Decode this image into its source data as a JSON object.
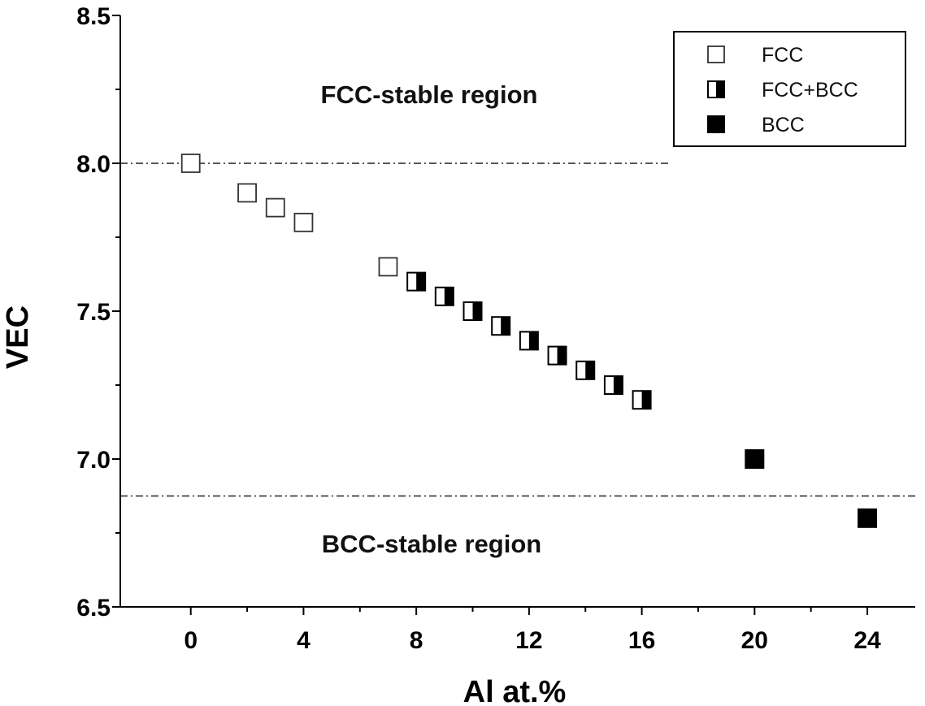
{
  "chart_data": {
    "type": "scatter",
    "xlabel": "Al at.%",
    "ylabel": "VEC",
    "xlim": [
      -2.5,
      25.7
    ],
    "ylim": [
      6.5,
      8.5
    ],
    "x_ticks": [
      "0",
      "4",
      "8",
      "12",
      "16",
      "20",
      "24"
    ],
    "y_ticks": [
      "6.5",
      "7.0",
      "7.5",
      "8.0",
      "8.5"
    ],
    "grid": false,
    "legend_position": "top-right",
    "series": [
      {
        "name": "FCC",
        "marker": "open-square",
        "x": [
          0,
          2,
          3,
          4,
          7
        ],
        "y": [
          8.0,
          7.9,
          7.85,
          7.8,
          7.65
        ]
      },
      {
        "name": "FCC+BCC",
        "marker": "half-filled-square",
        "x": [
          8,
          9,
          10,
          11,
          12,
          13,
          14,
          15,
          16
        ],
        "y": [
          7.6,
          7.55,
          7.5,
          7.45,
          7.4,
          7.35,
          7.3,
          7.25,
          7.2
        ]
      },
      {
        "name": "BCC",
        "marker": "filled-square",
        "x": [
          20,
          24
        ],
        "y": [
          7.0,
          6.8
        ]
      }
    ],
    "reference_lines": [
      {
        "y": 8.0,
        "x_range": [
          -2.5,
          17
        ],
        "style": "dash-dot"
      },
      {
        "y": 6.875,
        "x_range": [
          -2.5,
          25.7
        ],
        "style": "dash-dot"
      }
    ],
    "annotations": [
      {
        "text": "FCC-stable region",
        "x": 10.5,
        "y": 8.23
      },
      {
        "text": "BCC-stable region",
        "x": 10.5,
        "y": 6.72
      }
    ]
  }
}
